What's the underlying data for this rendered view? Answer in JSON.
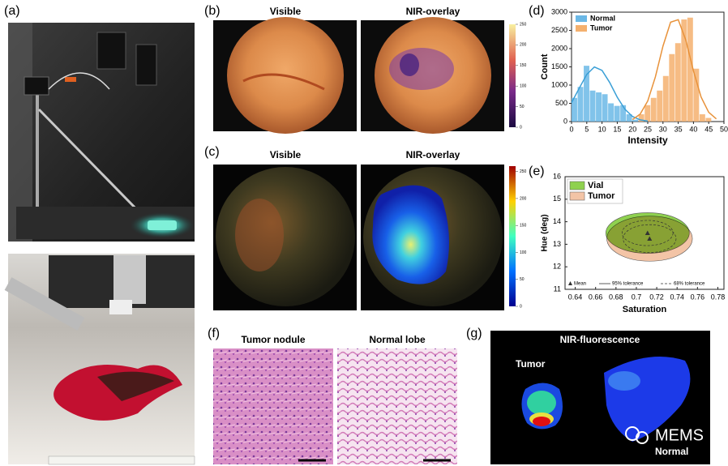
{
  "panel_labels": [
    "(a)",
    "(b)",
    "(c)",
    "(d)",
    "(e)",
    "(f)",
    "(g)"
  ],
  "panel_b": {
    "titles": [
      "Visible",
      "NIR-overlay"
    ],
    "colorbar": {
      "lim": [
        0,
        250
      ],
      "ticks": [
        0,
        50,
        100,
        150,
        200,
        250
      ]
    }
  },
  "panel_c": {
    "titles": [
      "Visible",
      "NIR-overlay"
    ],
    "colorbar": {
      "lim": [
        0,
        260
      ],
      "ticks": [
        0,
        50,
        100,
        150,
        200,
        250
      ]
    }
  },
  "panel_f": {
    "titles": [
      "Tumor nodule",
      "Normal lobe"
    ]
  },
  "panel_g": {
    "title": "NIR-fluorescence",
    "labels": [
      "Tumor",
      "Normal"
    ]
  },
  "watermark": "MEMS",
  "chart_data": [
    {
      "type": "histogram",
      "xlabel": "Intensity",
      "ylabel": "Count",
      "xlim": [
        0,
        50
      ],
      "xticks": [
        0,
        5,
        10,
        15,
        20,
        25,
        30,
        35,
        40,
        45,
        50
      ],
      "ylim": [
        0,
        3000
      ],
      "yticks": [
        0,
        500,
        1000,
        1500,
        2000,
        2500,
        3000
      ],
      "bins": [
        0,
        2,
        4,
        6,
        8,
        10,
        12,
        14,
        16,
        18,
        20,
        22,
        24,
        26,
        28,
        30,
        32,
        34,
        36,
        38,
        40,
        42,
        44,
        46
      ],
      "series": [
        {
          "name": "Normal",
          "color": "#6bb8e6",
          "line_color": "#3a9fd6",
          "values": [
            650,
            950,
            1530,
            850,
            800,
            750,
            500,
            430,
            450,
            200,
            50,
            0,
            0,
            0,
            0,
            0,
            0,
            0,
            0,
            0,
            0,
            0,
            0
          ],
          "fit_x": [
            0,
            2.5,
            5,
            7.5,
            10,
            12.5,
            15,
            17.5,
            20,
            22.5,
            25
          ],
          "fit_values": [
            520,
            910,
            1293,
            1497,
            1404,
            1074,
            667,
            338,
            139,
            47,
            13
          ]
        },
        {
          "name": "Tumor",
          "color": "#f4b06e",
          "line_color": "#e8923a",
          "values": [
            0,
            0,
            0,
            0,
            0,
            0,
            0,
            0,
            0,
            0,
            0,
            200,
            450,
            650,
            850,
            1250,
            1850,
            2150,
            2800,
            2850,
            1450,
            200,
            100
          ],
          "fit_x": [
            20,
            22.5,
            25,
            27.5,
            30,
            32.5,
            35,
            37.5,
            40,
            42.5,
            45,
            47.5
          ],
          "fit_values": [
            56,
            203,
            564,
            1224,
            2070,
            2725,
            2794,
            2231,
            1387,
            672,
            254,
            74
          ]
        }
      ]
    },
    {
      "type": "ellipse",
      "xlabel": "Saturation",
      "ylabel": "Hue (deg)",
      "xlim": [
        0.63,
        0.786
      ],
      "xticks": [
        0.64,
        0.66,
        0.68,
        0.7,
        0.72,
        0.74,
        0.76,
        0.78
      ],
      "ylim": [
        11,
        16
      ],
      "yticks": [
        11,
        12,
        13,
        14,
        15,
        16
      ],
      "notes": [
        "Mean",
        "95% tolerance",
        "68% tolerance"
      ],
      "series": [
        {
          "name": "Tumor",
          "color": "#f3c4a6",
          "x": 0.713,
          "y": 13.25,
          "rx": 0.042,
          "ry": 1.0,
          "rx68": 0.026,
          "ry68": 0.62
        },
        {
          "name": "Vial",
          "color": "#8fd14f",
          "x": 0.711,
          "y": 13.5,
          "rx": 0.041,
          "ry": 0.9,
          "rx68": 0.025,
          "ry68": 0.56
        }
      ]
    }
  ]
}
